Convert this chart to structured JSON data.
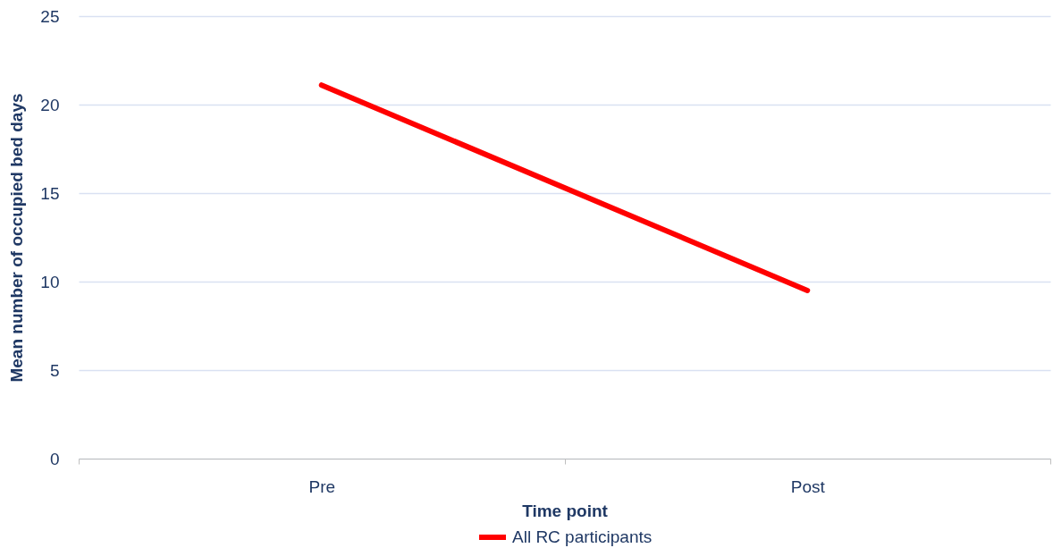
{
  "chart_data": {
    "type": "line",
    "xlabel": "Time point",
    "ylabel": "Mean number of occupied bed days",
    "categories": [
      "Pre",
      "Post"
    ],
    "series": [
      {
        "name": "All RC participants",
        "color": "#ff0000",
        "values": [
          21.1,
          9.5
        ]
      }
    ],
    "ylim": [
      0,
      25
    ],
    "yticks": [
      0,
      5,
      10,
      15,
      20,
      25
    ],
    "grid": "y",
    "legend": "bottom",
    "line_style": "solid"
  }
}
